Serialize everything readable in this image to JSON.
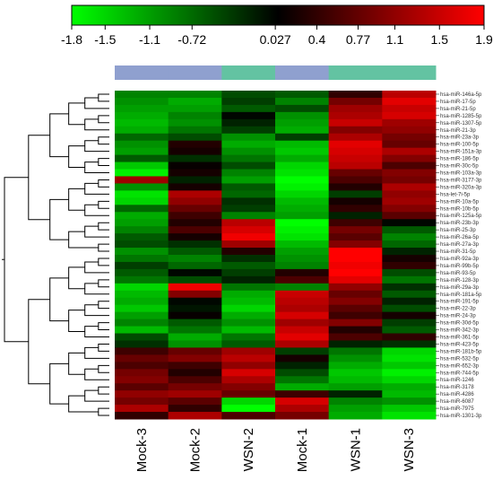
{
  "chart_data": {
    "type": "heatmap",
    "title": "",
    "xlabel": "",
    "ylabel": "",
    "color_scale": {
      "min": -1.8,
      "max": 1.9,
      "low_color": "#00ff00",
      "mid_color": "#000000",
      "high_color": "#ff0000",
      "ticks": [
        "-1.8",
        "-1.5",
        "-1.1",
        "-0.72",
        "0.027",
        "0.4",
        "0.77",
        "1.1",
        "1.5",
        "1.9"
      ],
      "tick_values": [
        -1.8,
        -1.5,
        -1.1,
        -0.72,
        0.027,
        0.4,
        0.77,
        1.1,
        1.5,
        1.9
      ]
    },
    "group_colors": [
      "#8fa0cf",
      "#63c3a2"
    ],
    "columns": [
      {
        "label": "Mock-3",
        "group": 0
      },
      {
        "label": "Mock-2",
        "group": 0
      },
      {
        "label": "WSN-2",
        "group": 1
      },
      {
        "label": "Mock-1",
        "group": 0
      },
      {
        "label": "WSN-1",
        "group": 1
      },
      {
        "label": "WSN-3",
        "group": 1
      }
    ],
    "rows": [
      {
        "label": "hsa-miR-146a-5p",
        "values": [
          -0.9,
          -0.9,
          -0.5,
          -0.6,
          0.4,
          1.4
        ]
      },
      {
        "label": "hsa-miR-17-5p",
        "values": [
          -1.0,
          -1.2,
          -0.4,
          -0.9,
          0.9,
          1.7
        ]
      },
      {
        "label": "hsa-miR-21-5p",
        "values": [
          -1.1,
          -1.1,
          -0.6,
          -0.5,
          1.2,
          1.5
        ]
      },
      {
        "label": "hsa-miR-1285-5p",
        "values": [
          -1.2,
          -0.9,
          0.0,
          -1.0,
          1.3,
          1.6
        ]
      },
      {
        "label": "hsa-miR-1307-5p",
        "values": [
          -1.3,
          -1.0,
          -0.2,
          -1.1,
          1.5,
          1.2
        ]
      },
      {
        "label": "hsa-miR-21-3p",
        "values": [
          -1.2,
          -0.8,
          -0.4,
          -1.2,
          1.0,
          1.1
        ]
      },
      {
        "label": "hsa-miR-23a-3p",
        "values": [
          -0.7,
          -0.5,
          -1.0,
          -0.4,
          1.3,
          0.9
        ]
      },
      {
        "label": "hsa-miR-100-5p",
        "values": [
          -1.0,
          0.3,
          -1.2,
          -1.3,
          1.7,
          0.8
        ]
      },
      {
        "label": "hsa-miR-151a-3p",
        "values": [
          -1.1,
          0.2,
          -1.0,
          -1.4,
          1.6,
          1.3
        ]
      },
      {
        "label": "hsa-miR-186-5p",
        "values": [
          -0.6,
          -0.3,
          -0.8,
          -1.2,
          1.5,
          1.0
        ]
      },
      {
        "label": "hsa-miR-30c-5p",
        "values": [
          -1.4,
          0.1,
          -0.5,
          -1.5,
          1.4,
          0.6
        ]
      },
      {
        "label": "hsa-miR-103a-3p",
        "values": [
          -1.7,
          0.2,
          -0.9,
          -1.6,
          0.8,
          1.0
        ]
      },
      {
        "label": "hsa-miR-3177-3p",
        "values": [
          1.2,
          -0.2,
          -1.1,
          -1.8,
          0.6,
          0.9
        ]
      },
      {
        "label": "hsa-miR-320a-3p",
        "values": [
          -1.0,
          0.2,
          -0.6,
          -1.7,
          0.3,
          1.3
        ]
      },
      {
        "label": "hsa-let-7i-5p",
        "values": [
          -1.6,
          1.3,
          -0.7,
          -1.5,
          -0.4,
          1.1
        ]
      },
      {
        "label": "hsa-miR-10a-5p",
        "values": [
          -1.5,
          1.1,
          -0.3,
          -1.3,
          0.2,
          1.2
        ]
      },
      {
        "label": "hsa-miR-10b-5p",
        "values": [
          -0.7,
          0.8,
          -0.4,
          -1.2,
          0.4,
          1.0
        ]
      },
      {
        "label": "hsa-miR-125a-5p",
        "values": [
          -1.2,
          0.5,
          -0.9,
          -1.1,
          -0.2,
          0.7
        ]
      },
      {
        "label": "hsa-miR-23b-3p",
        "values": [
          -1.1,
          0.3,
          1.4,
          -1.8,
          0.5,
          0.0
        ]
      },
      {
        "label": "hsa-miR-25-3p",
        "values": [
          -0.9,
          0.6,
          1.6,
          -1.7,
          0.9,
          -0.6
        ]
      },
      {
        "label": "hsa-miR-26a-5p",
        "values": [
          -0.6,
          0.2,
          1.8,
          -1.6,
          0.7,
          -0.9
        ]
      },
      {
        "label": "hsa-miR-27a-3p",
        "values": [
          -0.5,
          -0.3,
          1.2,
          -1.3,
          1.0,
          -0.7
        ]
      },
      {
        "label": "hsa-miR-31-5p",
        "values": [
          -1.0,
          -0.6,
          0.3,
          -1.1,
          1.9,
          -0.2
        ]
      },
      {
        "label": "hsa-miR-92a-3p",
        "values": [
          -0.8,
          -0.9,
          -0.3,
          -1.0,
          1.9,
          0.2
        ]
      },
      {
        "label": "hsa-miR-99b-5p",
        "values": [
          -0.4,
          -0.7,
          -0.6,
          -0.9,
          1.8,
          0.4
        ]
      },
      {
        "label": "hsa-miR-93-5p",
        "values": [
          -0.6,
          0.0,
          -0.4,
          0.3,
          1.9,
          -0.5
        ]
      },
      {
        "label": "hsa-miR-128-3p",
        "values": [
          -0.8,
          -0.5,
          -0.2,
          0.6,
          1.7,
          -0.8
        ]
      },
      {
        "label": "hsa-miR-29a-3p",
        "values": [
          -1.5,
          1.8,
          -0.8,
          -0.9,
          1.1,
          -0.3
        ]
      },
      {
        "label": "hsa-miR-181a-5p",
        "values": [
          -1.3,
          1.0,
          -1.2,
          1.5,
          0.8,
          -0.6
        ]
      },
      {
        "label": "hsa-miR-191-5p",
        "values": [
          -1.2,
          0.0,
          -1.3,
          1.4,
          1.0,
          -0.2
        ]
      },
      {
        "label": "hsa-miR-22-3p",
        "values": [
          -1.4,
          -0.1,
          -1.5,
          1.3,
          0.7,
          -0.5
        ]
      },
      {
        "label": "hsa-miR-24-3p",
        "values": [
          -1.1,
          0.1,
          -1.2,
          1.6,
          0.5,
          0.2
        ]
      },
      {
        "label": "hsa-miR-30d-5p",
        "values": [
          -0.9,
          -0.6,
          -1.0,
          1.2,
          1.0,
          -0.4
        ]
      },
      {
        "label": "hsa-miR-342-3p",
        "values": [
          -1.3,
          -0.8,
          -1.3,
          1.5,
          0.3,
          -0.6
        ]
      },
      {
        "label": "hsa-miR-361-5p",
        "values": [
          -0.5,
          -1.2,
          -0.8,
          1.7,
          0.6,
          0.4
        ]
      },
      {
        "label": "hsa-miR-423-5p",
        "values": [
          -0.3,
          -1.0,
          -0.6,
          1.3,
          -0.2,
          -0.3
        ]
      },
      {
        "label": "hsa-miR-181b-5p",
        "values": [
          0.5,
          0.8,
          1.2,
          -0.4,
          -0.8,
          -1.5
        ]
      },
      {
        "label": "hsa-miR-532-5p",
        "values": [
          0.8,
          1.0,
          1.4,
          0.2,
          -1.0,
          -1.6
        ]
      },
      {
        "label": "hsa-miR-652-3p",
        "values": [
          0.6,
          0.5,
          1.1,
          -0.2,
          -1.2,
          -1.4
        ]
      },
      {
        "label": "hsa-miR-744-5p",
        "values": [
          0.9,
          0.3,
          1.6,
          -0.5,
          -1.4,
          -1.7
        ]
      },
      {
        "label": "hsa-miR-1246",
        "values": [
          1.0,
          0.6,
          1.3,
          -0.8,
          -1.3,
          -1.5
        ]
      },
      {
        "label": "hsa-miR-3178",
        "values": [
          0.7,
          0.9,
          1.0,
          -1.2,
          -1.1,
          -1.2
        ]
      },
      {
        "label": "hsa-miR-4286",
        "values": [
          1.1,
          1.2,
          0.8,
          0.5,
          -0.2,
          -1.3
        ]
      },
      {
        "label": "hsa-miR-6087",
        "values": [
          0.9,
          0.7,
          -1.5,
          1.6,
          -0.9,
          -1.0
        ]
      },
      {
        "label": "hsa-miR-7975",
        "values": [
          1.3,
          0.4,
          -1.8,
          1.3,
          -1.1,
          -1.4
        ]
      },
      {
        "label": "hsa-miR-1301-3p",
        "values": [
          0.4,
          1.3,
          0.6,
          0.9,
          -1.2,
          -1.6
        ]
      }
    ]
  }
}
